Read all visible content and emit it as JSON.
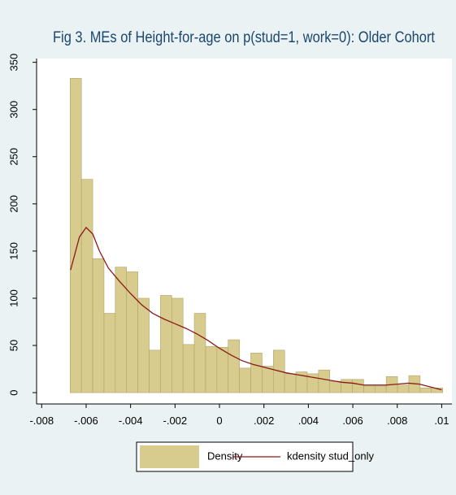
{
  "chart_data": {
    "type": "histogram",
    "title": "Fig 3. MEs of Height-for-age on p(stud=1, work=0): Older Cohort",
    "xlim": [
      -0.00823,
      0.01046
    ],
    "ylim": [
      -12,
      354
    ],
    "xticks": [
      {
        "value": -0.008,
        "label": "-.008"
      },
      {
        "value": -0.006,
        "label": "-.006"
      },
      {
        "value": -0.004,
        "label": "-.004"
      },
      {
        "value": -0.002,
        "label": "-.002"
      },
      0,
      {
        "value": 0.002,
        "label": ".002"
      },
      {
        "value": 0.004,
        "label": ".004"
      },
      {
        "value": 0.006,
        "label": ".006"
      },
      {
        "value": 0.008,
        "label": ".008"
      },
      {
        "value": 0.01,
        "label": ".01"
      }
    ],
    "yticks": [
      0,
      50,
      100,
      150,
      200,
      250,
      300,
      350
    ],
    "bins": [
      -0.00672,
      -0.006212,
      -0.005704,
      -0.005196,
      -0.004688,
      -0.00418,
      -0.003672,
      -0.003164,
      -0.002656,
      -0.002148,
      -0.00164,
      -0.001132,
      -0.000624,
      -0.000116,
      0.000392,
      0.0009,
      0.001408,
      0.001916,
      0.002424,
      0.002932,
      0.00344,
      0.003948,
      0.004456,
      0.004964,
      0.005472,
      0.00598,
      0.006488,
      0.006996,
      0.007504,
      0.008012,
      0.00852,
      0.009028,
      0.009536,
      0.010044
    ],
    "series": [
      {
        "name": "Density",
        "type": "histogram",
        "color": "#d7cb8e",
        "values": [
          333,
          226,
          142,
          84,
          133,
          128,
          100,
          45,
          103,
          100,
          51,
          84,
          49,
          48,
          56,
          26,
          42,
          28,
          45,
          20,
          22,
          20,
          24,
          12,
          14,
          14,
          7,
          7,
          17,
          8,
          18,
          5,
          5
        ]
      },
      {
        "name": "kdensity stud_only",
        "type": "line",
        "color": "#8b1a1a",
        "x": [
          -0.0067,
          -0.0063,
          -0.006,
          -0.0057,
          -0.0054,
          -0.005,
          -0.0045,
          -0.004,
          -0.0035,
          -0.003,
          -0.0025,
          -0.002,
          -0.0015,
          -0.001,
          -0.0005,
          0,
          0.0005,
          0.001,
          0.0015,
          0.002,
          0.0025,
          0.003,
          0.0035,
          0.004,
          0.0045,
          0.005,
          0.0055,
          0.006,
          0.0065,
          0.007,
          0.0075,
          0.008,
          0.0085,
          0.009,
          0.0095,
          0.01
        ],
        "values": [
          130,
          165,
          175,
          168,
          150,
          132,
          118,
          105,
          93,
          84,
          78,
          73,
          68,
          62,
          55,
          47,
          40,
          34,
          30,
          27,
          24,
          21,
          19,
          17,
          15,
          13,
          11,
          10,
          8,
          8,
          8,
          9,
          10,
          9,
          6,
          3
        ]
      }
    ]
  }
}
